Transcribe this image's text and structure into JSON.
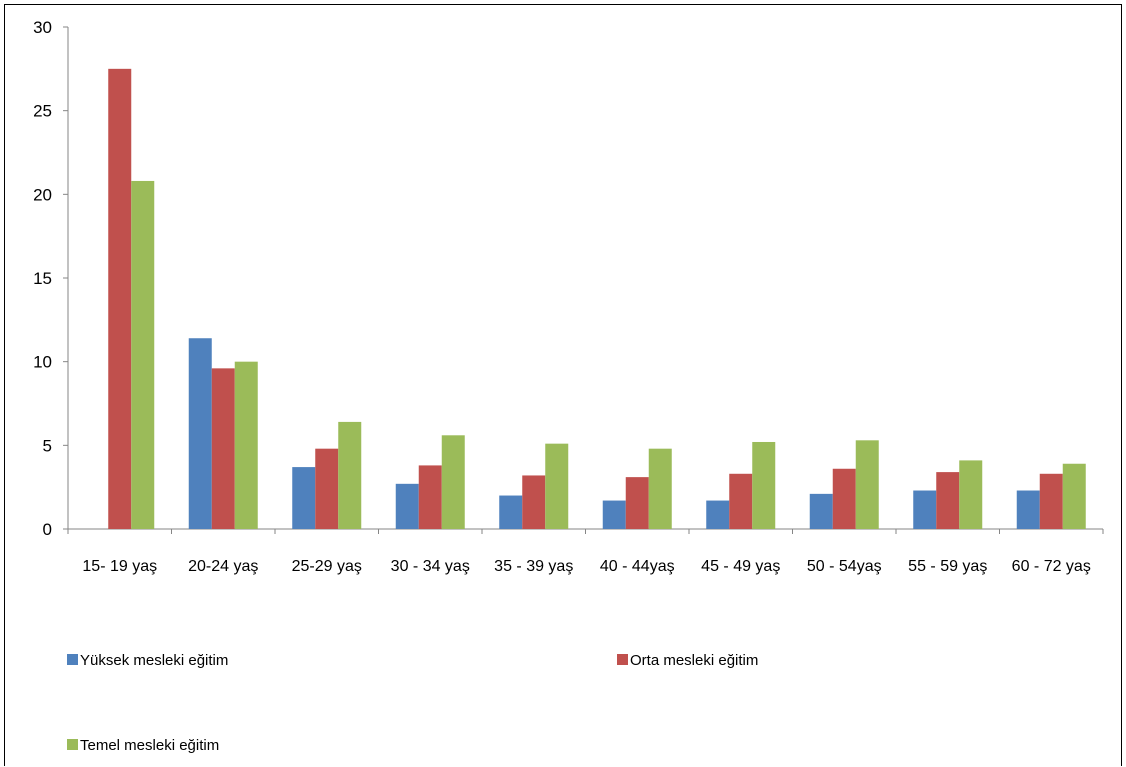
{
  "chart_data": {
    "type": "bar",
    "categories": [
      "15- 19 yaş",
      "20-24 yaş",
      "25-29 yaş",
      "30 - 34 yaş",
      "35 - 39 yaş",
      "40 - 44yaş",
      "45 - 49 yaş",
      "50 - 54yaş",
      "55 - 59 yaş",
      "60 - 72 yaş"
    ],
    "series": [
      {
        "name": "Yüksek mesleki eğitim",
        "color": "#4f81bd",
        "values": [
          0,
          11.4,
          3.7,
          2.7,
          2.0,
          1.7,
          1.7,
          2.1,
          2.3,
          2.3
        ]
      },
      {
        "name": "Orta mesleki eğitim",
        "color": "#c0504d",
        "values": [
          27.5,
          9.6,
          4.8,
          3.8,
          3.2,
          3.1,
          3.3,
          3.6,
          3.4,
          3.3
        ]
      },
      {
        "name": "Temel mesleki eğitim",
        "color": "#9bbb59",
        "values": [
          20.8,
          10.0,
          6.4,
          5.6,
          5.1,
          4.8,
          5.2,
          5.3,
          4.1,
          3.9
        ]
      }
    ],
    "ylim": [
      0,
      30
    ],
    "yticks": [
      0,
      5,
      10,
      15,
      20,
      25,
      30
    ],
    "title": "",
    "xlabel": "",
    "ylabel": "",
    "grid": false,
    "legend_position": "bottom"
  }
}
